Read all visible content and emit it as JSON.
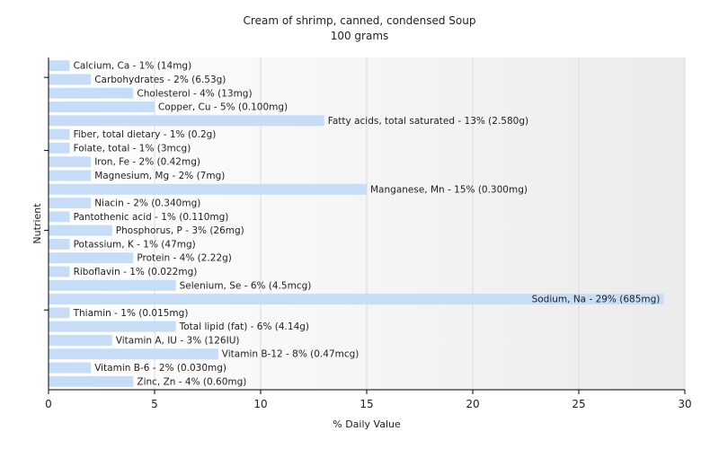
{
  "chart_data": {
    "type": "bar",
    "orientation": "horizontal",
    "title": "Cream of shrimp, canned, condensed Soup",
    "subtitle": "100 grams",
    "xlabel": "% Daily Value",
    "ylabel": "Nutrient",
    "xlim": [
      0,
      30
    ],
    "xticks": [
      0,
      5,
      10,
      15,
      20,
      25,
      30
    ],
    "grid": "vertical",
    "bar_color": "#c6dcf7",
    "categories": [
      "Calcium, Ca",
      "Carbohydrates",
      "Cholesterol",
      "Copper, Cu",
      "Fatty acids, total saturated",
      "Fiber, total dietary",
      "Folate, total",
      "Iron, Fe",
      "Magnesium, Mg",
      "Manganese, Mn",
      "Niacin",
      "Pantothenic acid",
      "Phosphorus, P",
      "Potassium, K",
      "Protein",
      "Riboflavin",
      "Selenium, Se",
      "Sodium, Na",
      "Thiamin",
      "Total lipid (fat)",
      "Vitamin A, IU",
      "Vitamin B-12",
      "Vitamin B-6",
      "Zinc, Zn"
    ],
    "values": [
      1,
      2,
      4,
      5,
      13,
      1,
      1,
      2,
      2,
      15,
      2,
      1,
      3,
      1,
      4,
      1,
      6,
      29,
      1,
      6,
      3,
      8,
      2,
      4
    ],
    "labels": [
      "Calcium, Ca - 1% (14mg)",
      "Carbohydrates - 2% (6.53g)",
      "Cholesterol - 4% (13mg)",
      "Copper, Cu - 5% (0.100mg)",
      "Fatty acids, total saturated - 13% (2.580g)",
      "Fiber, total dietary - 1% (0.2g)",
      "Folate, total - 1% (3mcg)",
      "Iron, Fe - 2% (0.42mg)",
      "Magnesium, Mg - 2% (7mg)",
      "Manganese, Mn - 15% (0.300mg)",
      "Niacin - 2% (0.340mg)",
      "Pantothenic acid - 1% (0.110mg)",
      "Phosphorus, P - 3% (26mg)",
      "Potassium, K - 1% (47mg)",
      "Protein - 4% (2.22g)",
      "Riboflavin - 1% (0.022mg)",
      "Selenium, Se - 6% (4.5mcg)",
      "Sodium, Na - 29% (685mg)",
      "Thiamin - 1% (0.015mg)",
      "Total lipid (fat) - 6% (4.14g)",
      "Vitamin A, IU - 3% (126IU)",
      "Vitamin B-12 - 8% (0.47mcg)",
      "Vitamin B-6 - 2% (0.030mg)",
      "Zinc, Zn - 4% (0.60mg)"
    ]
  }
}
